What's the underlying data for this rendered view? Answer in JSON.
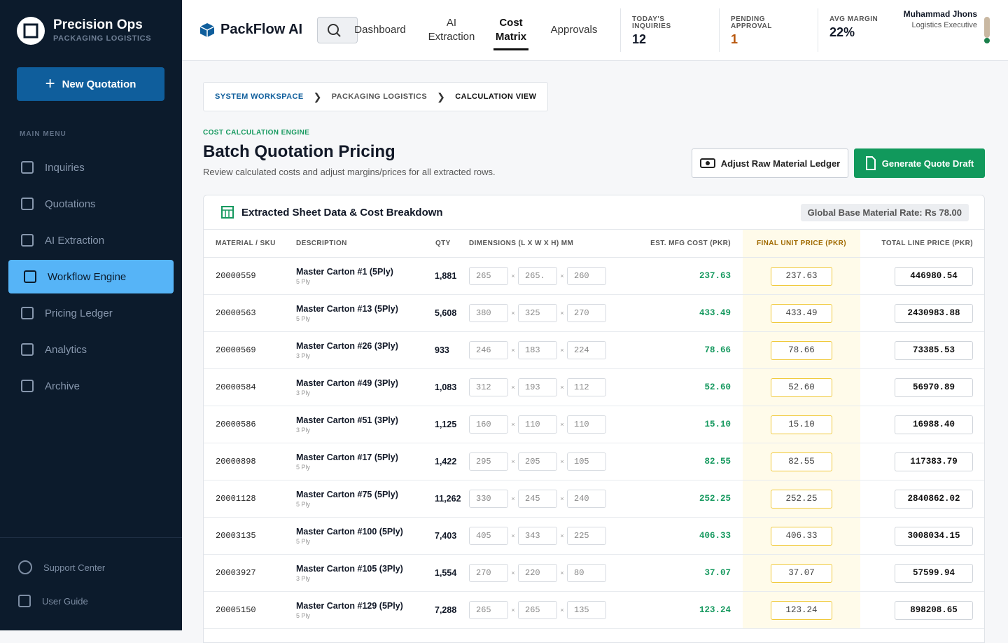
{
  "sidebar": {
    "brand": {
      "title": "Precision Ops",
      "subtitle": "PACKAGING LOGISTICS"
    },
    "new_button": "New Quotation",
    "menu_label": "MAIN MENU",
    "menu": [
      {
        "label": "Inquiries"
      },
      {
        "label": "Quotations"
      },
      {
        "label": "AI Extraction"
      },
      {
        "label": "Workflow Engine",
        "active": true
      },
      {
        "label": "Pricing Ledger"
      },
      {
        "label": "Analytics"
      },
      {
        "label": "Archive"
      }
    ],
    "footer": [
      "Support Center",
      "User Guide"
    ]
  },
  "header": {
    "app_name": "PackFlow AI",
    "nav": [
      {
        "label": "Dashboard"
      },
      {
        "label": "AI Extraction"
      },
      {
        "label": "Cost Matrix",
        "active": true
      },
      {
        "label": "Approvals"
      }
    ],
    "stats": [
      {
        "label": "TODAY'S INQUIRIES",
        "value": "12"
      },
      {
        "label": "PENDING APPROVAL",
        "value": "1"
      },
      {
        "label": "AVG MARGIN",
        "value": "22%"
      }
    ],
    "user": {
      "name": "Muhammad Jhons",
      "role": "Logistics Executive"
    }
  },
  "breadcrumb": [
    "SYSTEM WORKSPACE",
    "PACKAGING LOGISTICS",
    "CALCULATION VIEW"
  ],
  "page": {
    "eyebrow": "COST CALCULATION ENGINE",
    "title": "Batch Quotation Pricing",
    "description": "Review calculated costs and adjust margins/prices for all extracted rows.",
    "buttons": [
      "Adjust Raw Material Ledger",
      "Generate Quote Draft"
    ]
  },
  "table": {
    "title": "Extracted Sheet Data & Cost Breakdown",
    "badge": "Global Base Material Rate: Rs 78.00",
    "columns": [
      "MATERIAL / SKU",
      "DESCRIPTION",
      "QTY",
      "DIMENSIONS (L X W X H) MM",
      "EST. MFG COST (PKR)",
      "FINAL UNIT PRICE (PKR)",
      "TOTAL LINE PRICE (PKR)"
    ],
    "rows": [
      {
        "sku": "20000559",
        "description": "Master Carton #1 (5Ply)",
        "ply": "5 Ply",
        "qty": "1,881",
        "dims": [
          "265",
          "265.",
          "260"
        ],
        "cost": "237.63",
        "final": "237.63",
        "total": "446980.54"
      },
      {
        "sku": "20000563",
        "description": "Master Carton #13 (5Ply)",
        "ply": "5 Ply",
        "qty": "5,608",
        "dims": [
          "380",
          "325",
          "270"
        ],
        "cost": "433.49",
        "final": "433.49",
        "total": "2430983.88"
      },
      {
        "sku": "20000569",
        "description": "Master Carton #26 (3Ply)",
        "ply": "3 Ply",
        "qty": "933",
        "dims": [
          "246",
          "183",
          "224"
        ],
        "cost": "78.66",
        "final": "78.66",
        "total": "73385.53"
      },
      {
        "sku": "20000584",
        "description": "Master Carton #49 (3Ply)",
        "ply": "3 Ply",
        "qty": "1,083",
        "dims": [
          "312",
          "193",
          "112"
        ],
        "cost": "52.60",
        "final": "52.60",
        "total": "56970.89"
      },
      {
        "sku": "20000586",
        "description": "Master Carton #51 (3Ply)",
        "ply": "3 Ply",
        "qty": "1,125",
        "dims": [
          "160",
          "110",
          "110"
        ],
        "cost": "15.10",
        "final": "15.10",
        "total": "16988.40"
      },
      {
        "sku": "20000898",
        "description": "Master Carton #17 (5Ply)",
        "ply": "5 Ply",
        "qty": "1,422",
        "dims": [
          "295",
          "205",
          "105"
        ],
        "cost": "82.55",
        "final": "82.55",
        "total": "117383.79"
      },
      {
        "sku": "20001128",
        "description": "Master Carton #75 (5Ply)",
        "ply": "5 Ply",
        "qty": "11,262",
        "dims": [
          "330",
          "245",
          "240"
        ],
        "cost": "252.25",
        "final": "252.25",
        "total": "2840862.02"
      },
      {
        "sku": "20003135",
        "description": "Master Carton #100 (5Ply)",
        "ply": "5 Ply",
        "qty": "7,403",
        "dims": [
          "405",
          "343",
          "225"
        ],
        "cost": "406.33",
        "final": "406.33",
        "total": "3008034.15"
      },
      {
        "sku": "20003927",
        "description": "Master Carton #105 (3Ply)",
        "ply": "3 Ply",
        "qty": "1,554",
        "dims": [
          "270",
          "220",
          "80"
        ],
        "cost": "37.07",
        "final": "37.07",
        "total": "57599.94"
      },
      {
        "sku": "20005150",
        "description": "Master Carton #129 (5Ply)",
        "ply": "5 Ply",
        "qty": "7,288",
        "dims": [
          "265",
          "265",
          "135"
        ],
        "cost": "123.24",
        "final": "123.24",
        "total": "898208.65"
      }
    ]
  }
}
